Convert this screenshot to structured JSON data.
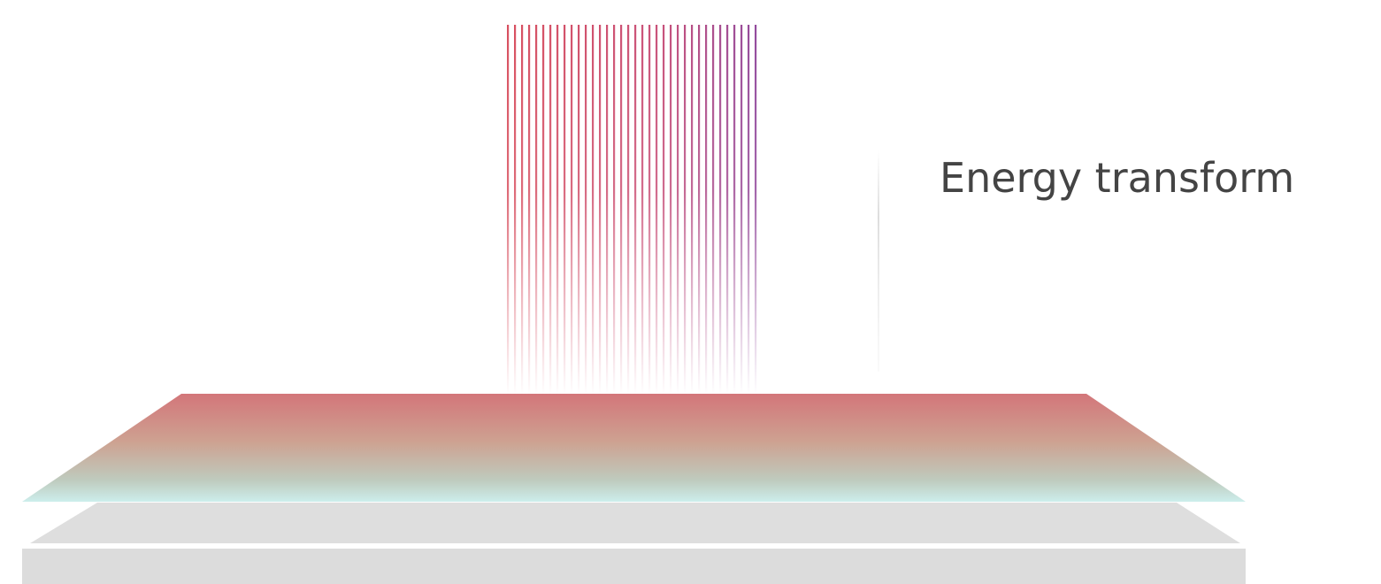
{
  "label": "Energy transform"
}
